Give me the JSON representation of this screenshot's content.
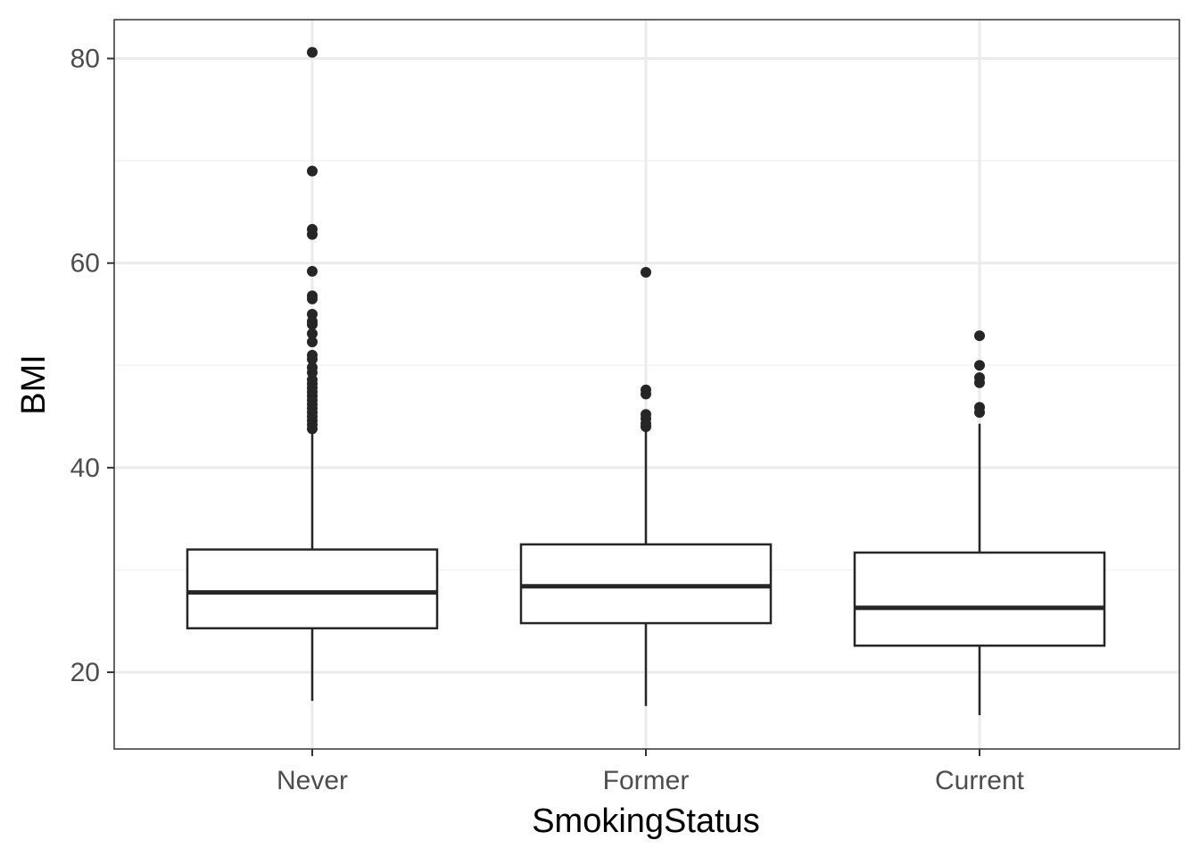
{
  "chart_data": {
    "type": "box",
    "xlabel": "SmokingStatus",
    "ylabel": "BMI",
    "ylim": [
      12.5,
      83.8
    ],
    "yticks": [
      20,
      40,
      60,
      80
    ],
    "grid": true,
    "theme": "white background, grey gridlines, black panel border",
    "colors": {
      "box_stroke": "#262626",
      "box_fill": "#ffffff",
      "grid_major": "#ebebeb",
      "grid_minor": "#f2f2f2",
      "tick_label": "#4d4d4d"
    },
    "categories": [
      "Never",
      "Former",
      "Current"
    ],
    "boxes": [
      {
        "category": "Never",
        "whisker_low": 17.2,
        "q1": 24.3,
        "median": 27.8,
        "q3": 32.0,
        "whisker_high": 43.4,
        "outliers": [
          80.6,
          69.0,
          63.3,
          62.8,
          59.2,
          56.8,
          56.5,
          55.0,
          54.3,
          54.0,
          53.1,
          52.3,
          51.0,
          50.6,
          49.8,
          49.3,
          48.6,
          48.2,
          47.8,
          47.4,
          47.0,
          46.6,
          46.2,
          45.8,
          45.4,
          45.0,
          44.6,
          44.2,
          43.8
        ]
      },
      {
        "category": "Former",
        "whisker_low": 16.7,
        "q1": 24.8,
        "median": 28.4,
        "q3": 32.5,
        "whisker_high": 43.8,
        "outliers": [
          59.1,
          47.6,
          47.2,
          45.2,
          44.8,
          44.3,
          44.0
        ]
      },
      {
        "category": "Current",
        "whisker_low": 15.8,
        "q1": 22.6,
        "median": 26.3,
        "q3": 31.7,
        "whisker_high": 44.3,
        "outliers": [
          52.9,
          50.0,
          48.8,
          48.3,
          45.9,
          45.4
        ]
      }
    ]
  }
}
